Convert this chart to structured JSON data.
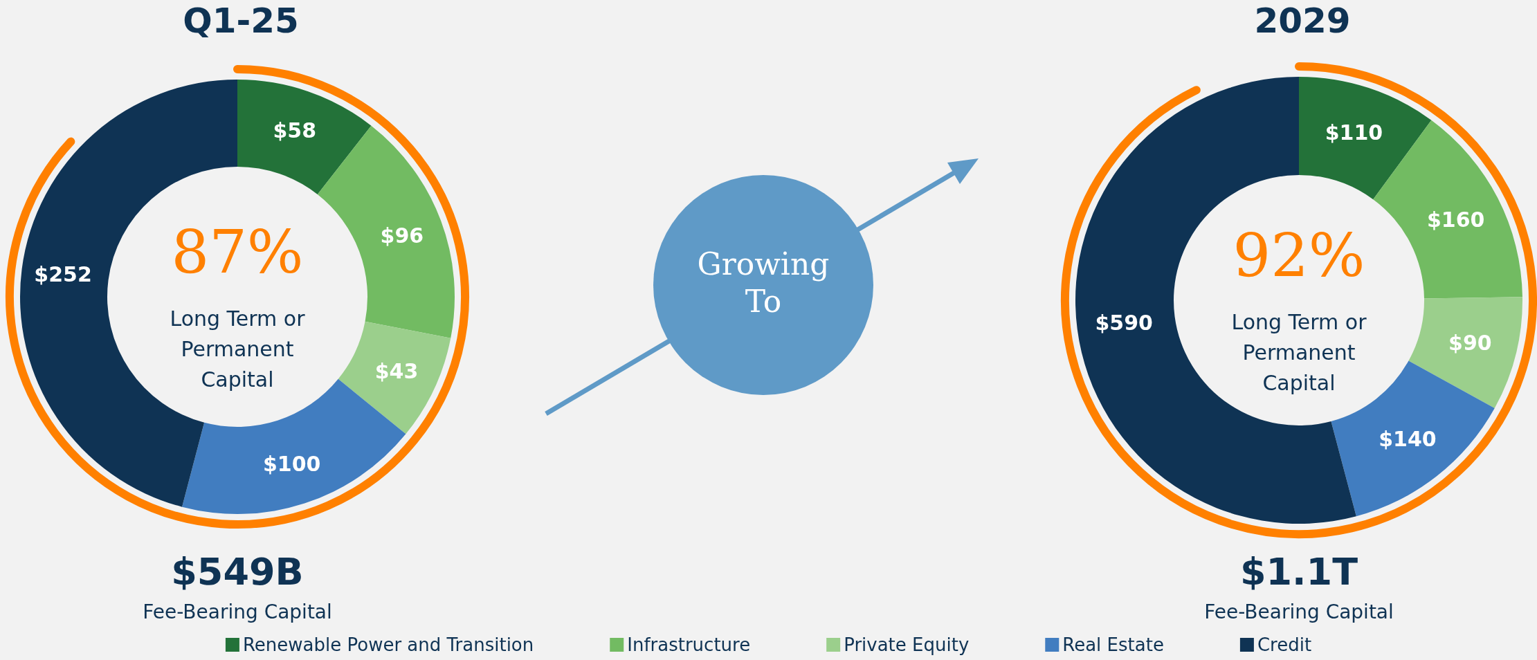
{
  "chart_data": [
    {
      "type": "donut",
      "title": "Q1-25",
      "categories": [
        "Renewable Power and Transition",
        "Infrastructure",
        "Private Equity",
        "Real Estate",
        "Credit"
      ],
      "values": [
        58,
        96,
        43,
        100,
        252
      ],
      "value_labels": [
        "$58",
        "$96",
        "$43",
        "$100",
        "$252"
      ],
      "colors": [
        "#237239",
        "#72bb62",
        "#9bcf8c",
        "#417dc0",
        "#0f3354"
      ],
      "legend": "bottom",
      "annotations": [
        "87%",
        "Long Term or Permanent Capital",
        "$549B",
        "Fee-Bearing Capital",
        "Growing To"
      ]
    },
    {
      "type": "donut",
      "title": "2029",
      "categories": [
        null,
        null,
        null,
        null,
        null
      ],
      "values": [
        110,
        160,
        90,
        140,
        590
      ],
      "value_labels": [
        "$110",
        "$160",
        "$90",
        "$140",
        "$590"
      ],
      "colors": [
        "#237239",
        "#72bb62",
        "#9bcf8c",
        "#417dc0",
        "#0f3354"
      ],
      "annotations": [
        "92%",
        "Long Term or Permanent Capital",
        "$1.1T",
        "Fee-Bearing Capital"
      ]
    }
  ]
}
